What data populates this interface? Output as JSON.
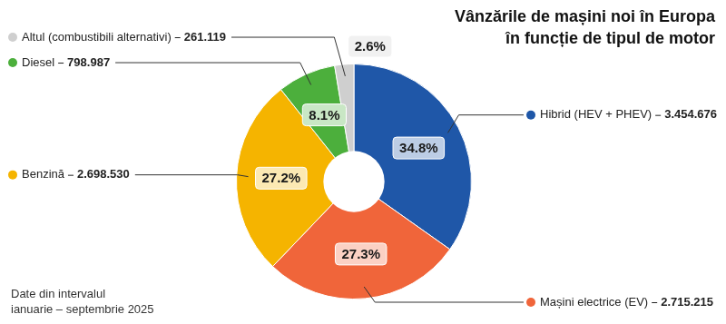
{
  "chart_data": {
    "type": "pie",
    "title": [
      "Vânzările de mașini noi în Europa",
      "în funcție de tipul de motor"
    ],
    "categories": [
      "Hibrid (HEV + PHEV)",
      "Mașini electrice (EV)",
      "Benzină",
      "Diesel",
      "Altul (combustibili alternativi)"
    ],
    "values": [
      3454676,
      2715215,
      2698530,
      798987,
      261119
    ],
    "value_labels": [
      "3.454.676",
      "2.715.215",
      "2.698.530",
      "798.987",
      "261.119"
    ],
    "shares": [
      34.8,
      27.3,
      27.2,
      8.1,
      2.6
    ],
    "share_labels": [
      "34.8%",
      "27.3%",
      "27.2%",
      "8.1%",
      "2.6%"
    ],
    "colors": [
      "#1f57a8",
      "#f0653a",
      "#f5b400",
      "#4caf3c",
      "#cfcfcf"
    ],
    "data_labels": true,
    "note": [
      "Date din intervalul",
      "ianuarie – septembrie 2025"
    ]
  }
}
